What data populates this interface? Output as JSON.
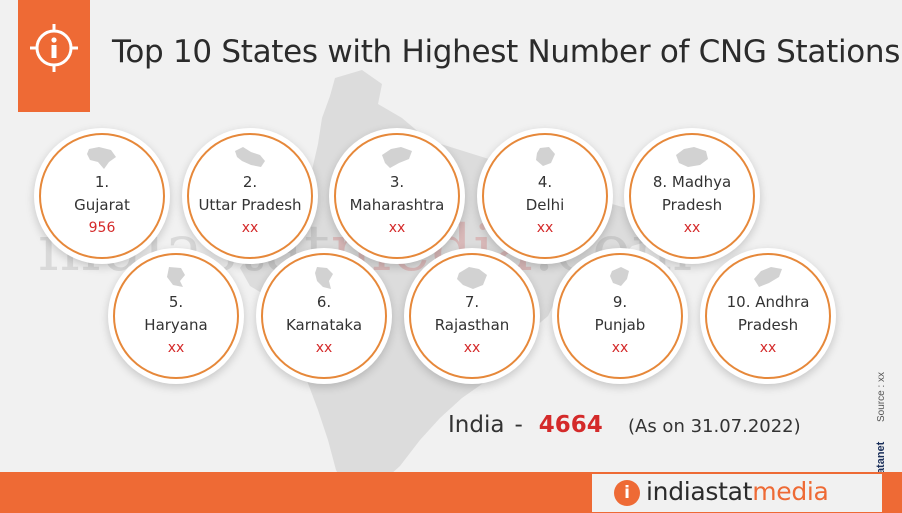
{
  "title": "Top 10 States with Highest Number of CNG Stations",
  "watermark": {
    "part1": "indiastat",
    "part2": "media",
    "part3": ".com"
  },
  "states": [
    {
      "rank": "1.",
      "name": "Gujarat",
      "value": "956"
    },
    {
      "rank": "2.",
      "name": "Uttar Pradesh",
      "value": "xx"
    },
    {
      "rank": "3.",
      "name": "Maharashtra",
      "value": "xx"
    },
    {
      "rank": "4.",
      "name": "Delhi",
      "value": "xx"
    },
    {
      "rank": "8. Madhya",
      "name": "Pradesh",
      "value": "xx"
    },
    {
      "rank": "5.",
      "name": "Haryana",
      "value": "xx"
    },
    {
      "rank": "6.",
      "name": "Karnataka",
      "value": "xx"
    },
    {
      "rank": "7.",
      "name": "Rajasthan",
      "value": "xx"
    },
    {
      "rank": "9.",
      "name": "Punjab",
      "value": "xx"
    },
    {
      "rank": "10. Andhra",
      "name": "Pradesh",
      "value": "xx"
    }
  ],
  "total": {
    "label": "India",
    "dash": "-",
    "value": "4664",
    "as_on": "(As on 31.07.2022)"
  },
  "source": {
    "brand": "Datanet",
    "copyright": "©",
    "text": "Source : xx"
  },
  "brand": {
    "icon": "i",
    "part1": "indiastat",
    "part2": "media"
  },
  "colors": {
    "accent": "#ee6a35",
    "value_red": "#d42a2a",
    "circle_border": "#e6883a",
    "background": "#f1f1f1",
    "map": "#dcdcdc"
  },
  "icons": {
    "header": "info-icon",
    "map": "india-map-silhouette"
  }
}
